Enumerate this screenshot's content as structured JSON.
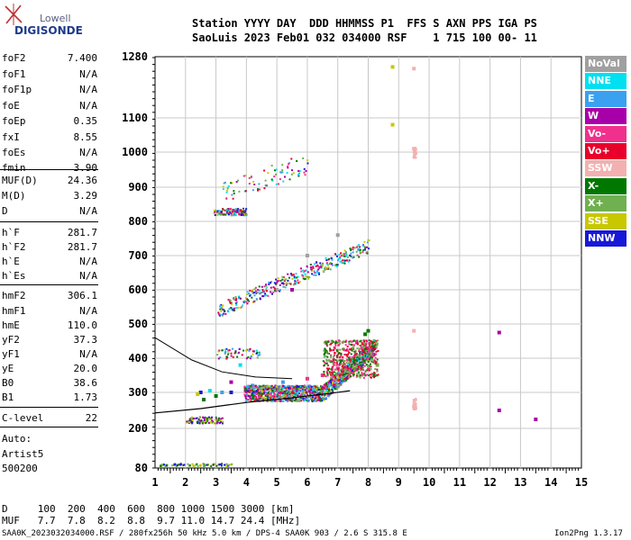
{
  "brand": {
    "line1": "Lowell",
    "line2": "DIGISONDE"
  },
  "header": {
    "line1": "Station YYYY DAY  DDD HHMMSS P1  FFS S AXN PPS IGA PS",
    "line2": "SaoLuis 2023 Feb01 032 034000 RSF    1 715 100 00- 11"
  },
  "params": [
    {
      "name": "foF2",
      "value": "7.400"
    },
    {
      "name": "foF1",
      "value": "N/A"
    },
    {
      "name": "foF1p",
      "value": "N/A"
    },
    {
      "name": "foE",
      "value": "N/A"
    },
    {
      "name": "foEp",
      "value": "0.35"
    },
    {
      "name": "fxI",
      "value": "8.55"
    },
    {
      "name": "foEs",
      "value": "N/A"
    },
    {
      "name": "fmin",
      "value": "3.90"
    },
    {
      "name": "MUF(D)",
      "value": "24.36"
    },
    {
      "name": "M(D)",
      "value": "3.29"
    },
    {
      "name": "D",
      "value": "N/A"
    },
    {
      "name": "h`F",
      "value": "281.7"
    },
    {
      "name": "h`F2",
      "value": "281.7"
    },
    {
      "name": "h`E",
      "value": "N/A"
    },
    {
      "name": "h`Es",
      "value": "N/A"
    },
    {
      "name": "hmF2",
      "value": "306.1"
    },
    {
      "name": "hmF1",
      "value": "N/A"
    },
    {
      "name": "hmE",
      "value": "110.0"
    },
    {
      "name": "yF2",
      "value": "37.3"
    },
    {
      "name": "yF1",
      "value": "N/A"
    },
    {
      "name": "yE",
      "value": "20.0"
    },
    {
      "name": "B0",
      "value": "38.6"
    },
    {
      "name": "B1",
      "value": "1.73"
    },
    {
      "name": "C-level",
      "value": "22"
    }
  ],
  "auto": {
    "line1": "Auto:",
    "line2": "Artist5",
    "line3": "500200"
  },
  "legend": [
    {
      "label": "NoVal",
      "color": "#a0a0a0"
    },
    {
      "label": "NNE",
      "color": "#00e0f0"
    },
    {
      "label": "E",
      "color": "#3aa0f0"
    },
    {
      "label": "W",
      "color": "#a800a8"
    },
    {
      "label": "Vo-",
      "color": "#f0308c"
    },
    {
      "label": "Vo+",
      "color": "#e8002a"
    },
    {
      "label": "SSW",
      "color": "#f4b0b0"
    },
    {
      "label": "X-",
      "color": "#007800"
    },
    {
      "label": "X+",
      "color": "#70b050"
    },
    {
      "label": "SSE",
      "color": "#c8c800"
    },
    {
      "label": "NNW",
      "color": "#1818d8"
    }
  ],
  "chart_data": {
    "type": "scatter",
    "x_ticks": [
      "1",
      "2",
      "3",
      "4",
      "5",
      "6",
      "7",
      "8",
      "9",
      "10",
      "11",
      "12",
      "13",
      "14",
      "15"
    ],
    "y_ticks": [
      "80",
      "200",
      "300",
      "400",
      "500",
      "600",
      "700",
      "800",
      "900",
      "1000",
      "1100",
      "1280"
    ],
    "xlim": [
      1,
      15
    ],
    "y_tick_values": [
      80,
      200,
      300,
      400,
      500,
      600,
      700,
      800,
      900,
      1000,
      1100,
      1280
    ],
    "grid": true,
    "series": [
      {
        "name": "Vo-",
        "color": "#f0308c",
        "points": [
          [
            6.5,
            350
          ],
          [
            7.0,
            370
          ],
          [
            7.5,
            400
          ],
          [
            7.8,
            430
          ],
          [
            6.0,
            340
          ]
        ]
      },
      {
        "name": "Vo+",
        "color": "#e8002a",
        "points": [
          [
            7.2,
            380
          ],
          [
            7.6,
            410
          ],
          [
            7.9,
            440
          ],
          [
            6.8,
            355
          ]
        ]
      },
      {
        "name": "X-",
        "color": "#007800",
        "points": [
          [
            7.9,
            470
          ],
          [
            8.0,
            480
          ],
          [
            8.2,
            350
          ],
          [
            3.0,
            290
          ],
          [
            2.6,
            280
          ]
        ]
      },
      {
        "name": "X+",
        "color": "#70b050",
        "points": [
          [
            8.1,
            400
          ],
          [
            8.3,
            380
          ],
          [
            7.5,
            360
          ]
        ]
      },
      {
        "name": "W",
        "color": "#a800a8",
        "points": [
          [
            3.5,
            330
          ],
          [
            4.5,
            300
          ],
          [
            5.5,
            600
          ],
          [
            12.3,
            250
          ],
          [
            13.5,
            225
          ],
          [
            12.3,
            475
          ]
        ]
      },
      {
        "name": "NNW",
        "color": "#1818d8",
        "points": [
          [
            2.5,
            300
          ],
          [
            3.5,
            300
          ],
          [
            4.0,
            310
          ],
          [
            2.2,
            225
          ]
        ]
      },
      {
        "name": "E",
        "color": "#3aa0f0",
        "points": [
          [
            3.2,
            300
          ],
          [
            4.2,
            320
          ],
          [
            5.2,
            330
          ]
        ]
      },
      {
        "name": "NNE",
        "color": "#00e0f0",
        "points": [
          [
            2.8,
            305
          ],
          [
            4.8,
            315
          ],
          [
            3.8,
            380
          ]
        ]
      },
      {
        "name": "SSE",
        "color": "#c8c800",
        "points": [
          [
            2.4,
            295
          ],
          [
            8.8,
            1250
          ],
          [
            8.8,
            1080
          ]
        ]
      },
      {
        "name": "SSW",
        "color": "#f4b0b0",
        "points": [
          [
            9.5,
            1245
          ],
          [
            9.5,
            1010
          ],
          [
            9.5,
            480
          ],
          [
            9.5,
            260
          ]
        ]
      },
      {
        "name": "NoVal",
        "color": "#a0a0a0",
        "points": [
          [
            6.0,
            700
          ],
          [
            7.0,
            760
          ],
          [
            5.0,
            600
          ]
        ]
      }
    ]
  },
  "footer": {
    "d_line": "D     100  200  400  600  800 1000 1500 3000 [km]",
    "muf_line": "MUF   7.7  7.8  8.2  8.8  9.7 11.0 14.7 24.4 [MHz]",
    "file_line": "SAA0K_2023032034000.RSF / 280fx256h 50 kHz 5.0 km / DPS-4 SAA0K 903 / 2.6 S 315.8 E",
    "version": "Ion2Png 1.3.17"
  }
}
